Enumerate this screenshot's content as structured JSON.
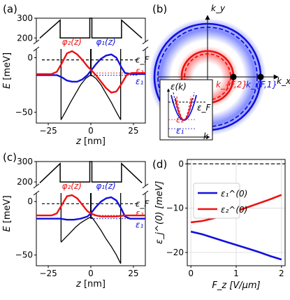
{
  "colors": {
    "red": "#ee1111",
    "blue": "#1111dd",
    "black": "#000000",
    "grid": "#d8d8d8"
  },
  "panel_labels": [
    "(a)",
    "(b)",
    "(c)",
    "(d)"
  ],
  "chart_data": [
    {
      "panel": "a",
      "type": "line",
      "xlabel_var": "z",
      "xlabel_unit": "[nm]",
      "ylabel_var": "E",
      "ylabel_unit": "[meV]",
      "x_ticks": [
        "−25",
        "0",
        "25"
      ],
      "y_ticks_lower": [
        "0",
        "−50"
      ],
      "y_ticks_upper": [
        "200",
        "300"
      ],
      "xlim": [
        -32,
        32
      ],
      "ylim_lower": [
        -60,
        8
      ],
      "ylim_upper": [
        180,
        300
      ],
      "fermi_level": -2,
      "e1": -16,
      "e2": -14,
      "labels": {
        "phi2": "φ₂(z)",
        "phi1": "φ₁(z)",
        "epsF": "ε_F",
        "eps2": "ε₂",
        "eps1": "ε₁"
      },
      "potential_bottom": [
        [
          -17.5,
          -57
        ],
        [
          -15,
          -50
        ],
        [
          -12,
          -41
        ],
        [
          -9,
          -33
        ],
        [
          -6,
          -25
        ],
        [
          -3,
          -19
        ],
        [
          -0.8,
          -16.5
        ],
        [
          0.8,
          -16.5
        ],
        [
          3,
          -19
        ],
        [
          6,
          -25
        ],
        [
          9,
          -33
        ],
        [
          12,
          -41
        ],
        [
          15,
          -50
        ],
        [
          17.5,
          -57
        ]
      ],
      "barrier_top": [
        [
          -30,
          199
        ],
        [
          -18,
          290
        ],
        [
          -18,
          200
        ],
        [
          -0.6,
          200
        ],
        [
          -0.6,
          300
        ],
        [
          0.6,
          300
        ],
        [
          0.6,
          200
        ],
        [
          18,
          200
        ],
        [
          18,
          290
        ],
        [
          30,
          199
        ]
      ],
      "phi2_curve": [
        [
          -32,
          -15
        ],
        [
          -23,
          -15
        ],
        [
          -20,
          -13
        ],
        [
          -17,
          -5
        ],
        [
          -14,
          4
        ],
        [
          -11,
          6
        ],
        [
          -8,
          3
        ],
        [
          -5,
          -2
        ],
        [
          -2,
          -8
        ],
        [
          0,
          -11
        ],
        [
          3,
          -16
        ],
        [
          6,
          -22
        ],
        [
          9,
          -28
        ],
        [
          12,
          -32
        ],
        [
          15,
          -31
        ],
        [
          18,
          -24
        ],
        [
          21,
          -16
        ],
        [
          24,
          -14
        ],
        [
          32,
          -14
        ]
      ],
      "phi1_curve": [
        [
          -32,
          -16
        ],
        [
          -23,
          -16
        ],
        [
          -20,
          -16
        ],
        [
          -17,
          -18
        ],
        [
          -14,
          -21
        ],
        [
          -11,
          -22
        ],
        [
          -8,
          -22
        ],
        [
          -5,
          -20
        ],
        [
          -2,
          -16
        ],
        [
          0,
          -12
        ],
        [
          3,
          -6
        ],
        [
          6,
          -1
        ],
        [
          9,
          2
        ],
        [
          12,
          3
        ],
        [
          15,
          0
        ],
        [
          18,
          -9
        ],
        [
          20,
          -14
        ],
        [
          24,
          -15
        ],
        [
          32,
          -15
        ]
      ]
    },
    {
      "panel": "b",
      "type": "diagram",
      "xlabel": "k_x",
      "ylabel": "k_y",
      "points": {
        "kF2": "k_{F,2}",
        "kF1": "k_{F,1}"
      },
      "inset": {
        "ylabel": "ε(k)",
        "xlabel": "k",
        "epsF": "ε_F",
        "eps2": "ε₂",
        "eps1": "ε₁"
      }
    },
    {
      "panel": "c",
      "type": "line",
      "xlabel_var": "z",
      "xlabel_unit": "[nm]",
      "ylabel_var": "E",
      "ylabel_unit": "[meV]",
      "x_ticks": [
        "−25",
        "0",
        "25"
      ],
      "y_ticks_lower": [
        "0",
        "−50"
      ],
      "y_ticks_upper": [
        "200",
        "300"
      ],
      "xlim": [
        -32,
        32
      ],
      "ylim_lower": [
        -60,
        8
      ],
      "ylim_upper": [
        180,
        300
      ],
      "fermi_level": -2,
      "e1": -16,
      "e2": -13,
      "labels": {
        "phi2": "φ₂(z)",
        "phi1": "φ₁(z)",
        "epsF": "ε_F",
        "eps2": "ε₂",
        "eps1": "ε₁"
      },
      "potential_bottom": [
        [
          -17.5,
          -38
        ],
        [
          -15,
          -34
        ],
        [
          -12,
          -29
        ],
        [
          -9,
          -24
        ],
        [
          -6,
          -20
        ],
        [
          -3,
          -17
        ],
        [
          -0.8,
          -15
        ],
        [
          0.8,
          -15
        ],
        [
          3,
          -20
        ],
        [
          6,
          -27
        ],
        [
          9,
          -35
        ],
        [
          12,
          -42
        ],
        [
          15,
          -50
        ],
        [
          17.5,
          -58
        ]
      ],
      "barrier_top": [
        [
          -30,
          195
        ],
        [
          -18,
          290
        ],
        [
          -18,
          200
        ],
        [
          -0.6,
          200
        ],
        [
          -0.6,
          300
        ],
        [
          0.6,
          300
        ],
        [
          0.6,
          200
        ],
        [
          18,
          200
        ],
        [
          18,
          290
        ],
        [
          30,
          195
        ]
      ],
      "phi2_curve": [
        [
          -32,
          -13
        ],
        [
          -23,
          -13
        ],
        [
          -20,
          -11
        ],
        [
          -17,
          -3
        ],
        [
          -14,
          5
        ],
        [
          -11,
          6
        ],
        [
          -8,
          3
        ],
        [
          -5,
          -3
        ],
        [
          -2,
          -9
        ],
        [
          0,
          -11
        ],
        [
          3,
          -13
        ],
        [
          6,
          -14
        ],
        [
          10,
          -14
        ],
        [
          15,
          -14
        ],
        [
          20,
          -13
        ],
        [
          32,
          -13
        ]
      ],
      "phi1_curve": [
        [
          -32,
          -16
        ],
        [
          -22,
          -16
        ],
        [
          -18,
          -16
        ],
        [
          -14,
          -17
        ],
        [
          -10,
          -17
        ],
        [
          -6,
          -16
        ],
        [
          -2,
          -14
        ],
        [
          0,
          -11
        ],
        [
          3,
          -5
        ],
        [
          6,
          0
        ],
        [
          9,
          3
        ],
        [
          12,
          4
        ],
        [
          15,
          1
        ],
        [
          18,
          -7
        ],
        [
          20,
          -14
        ],
        [
          23,
          -16
        ],
        [
          32,
          -16
        ]
      ]
    },
    {
      "panel": "d",
      "type": "line",
      "xlabel": "F_z [V/μm]",
      "ylabel": "ε_j^(0) [meV]",
      "x_ticks": [
        "0",
        "1",
        "2"
      ],
      "y_ticks": [
        "0",
        "−10",
        "−20"
      ],
      "xlim": [
        -0.08,
        2.08
      ],
      "ylim": [
        -23,
        1
      ],
      "zero_line": 0,
      "legend": {
        "loc": "upper-left",
        "entries": [
          "ε₁^(0)",
          "ε₂^(0)"
        ]
      },
      "series": [
        {
          "name": "ε₁^(0)",
          "color": "blue",
          "x": [
            0,
            0.25,
            0.5,
            0.75,
            1.0,
            1.25,
            1.5,
            1.75,
            2.0
          ],
          "y": [
            -15.3,
            -15.9,
            -16.7,
            -17.5,
            -18.3,
            -19.1,
            -19.9,
            -20.8,
            -21.6
          ]
        },
        {
          "name": "ε₂^(0)",
          "color": "red",
          "x": [
            0,
            0.25,
            0.5,
            0.75,
            1.0,
            1.25,
            1.5,
            1.75,
            2.0
          ],
          "y": [
            -13.2,
            -12.9,
            -12.3,
            -11.5,
            -10.7,
            -9.8,
            -8.9,
            -8.0,
            -7.0
          ]
        }
      ]
    }
  ]
}
